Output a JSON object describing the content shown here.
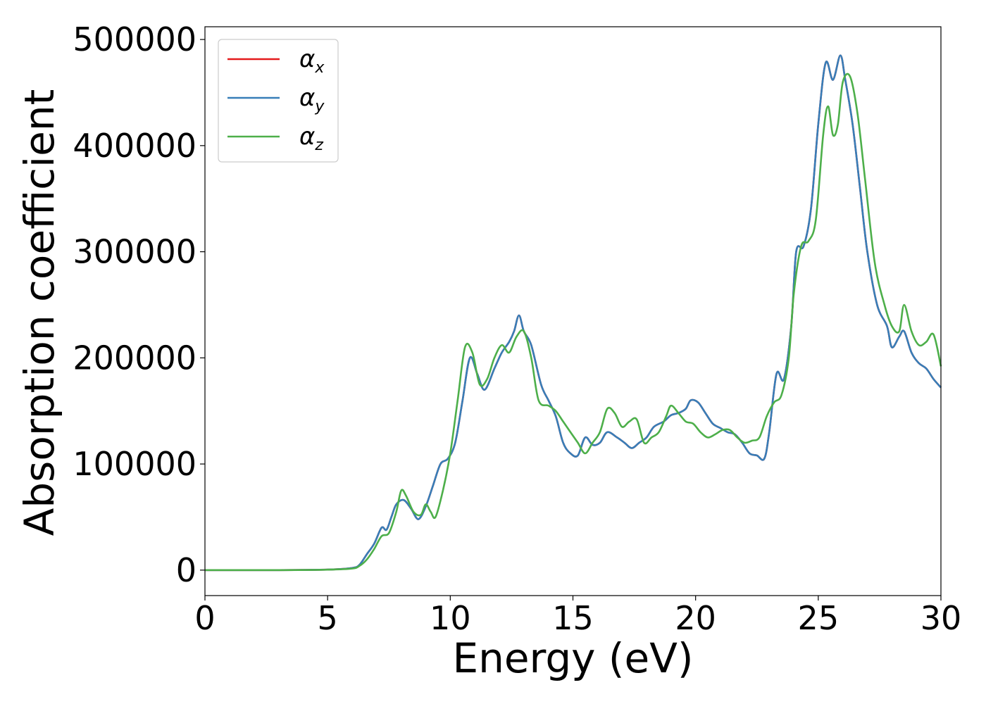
{
  "chart_data": {
    "type": "line",
    "title": "",
    "xlabel": "Energy (eV)",
    "ylabel": "Absorption coefficient",
    "xlim": [
      0,
      30
    ],
    "ylim": [
      -24000,
      512000
    ],
    "xticks": [
      0,
      5,
      10,
      15,
      20,
      25,
      30
    ],
    "xtick_labels": [
      "0",
      "5",
      "10",
      "15",
      "20",
      "25",
      "30"
    ],
    "yticks": [
      0,
      100000,
      200000,
      300000,
      400000,
      500000
    ],
    "ytick_labels": [
      "0",
      "100000",
      "200000",
      "300000",
      "400000",
      "500000"
    ],
    "grid": false,
    "legend_position": "top-left",
    "series": [
      {
        "name": "α",
        "subscript": "x",
        "color": "#e41a1c",
        "x": [
          0,
          3,
          5,
          6,
          6.3,
          6.6,
          6.9,
          7.2,
          7.4,
          7.6,
          7.8,
          8.1,
          8.4,
          8.7,
          9.0,
          9.3,
          9.6,
          9.9,
          10.2,
          10.5,
          10.8,
          11.1,
          11.4,
          11.8,
          12.1,
          12.4,
          12.6,
          12.8,
          13.0,
          13.3,
          13.7,
          14.0,
          14.3,
          14.6,
          14.9,
          15.2,
          15.5,
          15.8,
          16.1,
          16.4,
          16.8,
          17.1,
          17.4,
          17.7,
          18.0,
          18.3,
          18.7,
          19.0,
          19.3,
          19.6,
          19.8,
          20.1,
          20.4,
          20.7,
          21.0,
          21.3,
          21.6,
          21.9,
          22.2,
          22.5,
          22.8,
          23.0,
          23.3,
          23.6,
          23.9,
          24.1,
          24.4,
          24.7,
          25.0,
          25.3,
          25.6,
          25.9,
          26.1,
          26.4,
          26.7,
          27.0,
          27.4,
          27.8,
          28.0,
          28.3,
          28.5,
          28.8,
          29.1,
          29.4,
          29.7,
          30.0
        ],
        "values": [
          0,
          0,
          500,
          2000,
          5000,
          15000,
          25000,
          40000,
          38000,
          50000,
          62000,
          66000,
          58000,
          48000,
          60000,
          80000,
          100000,
          105000,
          120000,
          160000,
          200000,
          185000,
          170000,
          190000,
          205000,
          215000,
          225000,
          240000,
          225000,
          212000,
          175000,
          160000,
          145000,
          120000,
          110000,
          108000,
          125000,
          118000,
          120000,
          130000,
          125000,
          120000,
          115000,
          120000,
          125000,
          135000,
          140000,
          146000,
          148000,
          152000,
          160000,
          158000,
          148000,
          138000,
          134000,
          130000,
          128000,
          120000,
          110000,
          108000,
          105000,
          130000,
          185000,
          180000,
          230000,
          300000,
          305000,
          340000,
          420000,
          478000,
          462000,
          485000,
          462000,
          420000,
          360000,
          300000,
          250000,
          230000,
          210000,
          220000,
          225000,
          205000,
          195000,
          190000,
          180000,
          172000
        ]
      },
      {
        "name": "α",
        "subscript": "y",
        "color": "#377eb8",
        "x": [
          0,
          3,
          5,
          6,
          6.3,
          6.6,
          6.9,
          7.2,
          7.4,
          7.6,
          7.8,
          8.1,
          8.4,
          8.7,
          9.0,
          9.3,
          9.6,
          9.9,
          10.2,
          10.5,
          10.8,
          11.1,
          11.4,
          11.8,
          12.1,
          12.4,
          12.6,
          12.8,
          13.0,
          13.3,
          13.7,
          14.0,
          14.3,
          14.6,
          14.9,
          15.2,
          15.5,
          15.8,
          16.1,
          16.4,
          16.8,
          17.1,
          17.4,
          17.7,
          18.0,
          18.3,
          18.7,
          19.0,
          19.3,
          19.6,
          19.8,
          20.1,
          20.4,
          20.7,
          21.0,
          21.3,
          21.6,
          21.9,
          22.2,
          22.5,
          22.8,
          23.0,
          23.3,
          23.6,
          23.9,
          24.1,
          24.4,
          24.7,
          25.0,
          25.3,
          25.6,
          25.9,
          26.1,
          26.4,
          26.7,
          27.0,
          27.4,
          27.8,
          28.0,
          28.3,
          28.5,
          28.8,
          29.1,
          29.4,
          29.7,
          30.0
        ],
        "values": [
          0,
          0,
          500,
          2000,
          5000,
          15000,
          25000,
          40000,
          38000,
          50000,
          62000,
          66000,
          58000,
          48000,
          60000,
          80000,
          100000,
          105000,
          120000,
          160000,
          200000,
          185000,
          170000,
          190000,
          205000,
          215000,
          225000,
          240000,
          225000,
          212000,
          175000,
          160000,
          145000,
          120000,
          110000,
          108000,
          125000,
          118000,
          120000,
          130000,
          125000,
          120000,
          115000,
          120000,
          125000,
          135000,
          140000,
          146000,
          148000,
          152000,
          160000,
          158000,
          148000,
          138000,
          134000,
          130000,
          128000,
          120000,
          110000,
          108000,
          105000,
          130000,
          185000,
          180000,
          230000,
          300000,
          305000,
          340000,
          420000,
          478000,
          462000,
          485000,
          462000,
          420000,
          360000,
          300000,
          250000,
          230000,
          210000,
          220000,
          225000,
          205000,
          195000,
          190000,
          180000,
          172000
        ]
      },
      {
        "name": "α",
        "subscript": "z",
        "color": "#4daf4a",
        "x": [
          0,
          3,
          5,
          6,
          6.3,
          6.6,
          6.9,
          7.2,
          7.5,
          7.8,
          8.0,
          8.2,
          8.5,
          8.8,
          9.0,
          9.2,
          9.4,
          9.7,
          10.0,
          10.3,
          10.6,
          10.9,
          11.2,
          11.5,
          11.8,
          12.1,
          12.4,
          12.7,
          13.0,
          13.3,
          13.6,
          14.0,
          14.3,
          14.6,
          14.9,
          15.2,
          15.5,
          15.8,
          16.1,
          16.4,
          16.7,
          17.0,
          17.3,
          17.6,
          17.9,
          18.2,
          18.5,
          18.8,
          19.0,
          19.3,
          19.6,
          19.9,
          20.2,
          20.5,
          20.8,
          21.1,
          21.4,
          21.7,
          22.0,
          22.3,
          22.6,
          22.9,
          23.2,
          23.5,
          23.8,
          24.0,
          24.3,
          24.6,
          24.9,
          25.2,
          25.4,
          25.6,
          25.8,
          26.0,
          26.3,
          26.6,
          26.9,
          27.3,
          27.7,
          28.0,
          28.3,
          28.5,
          28.8,
          29.1,
          29.4,
          29.7,
          30.0
        ],
        "values": [
          0,
          0,
          400,
          1500,
          4000,
          10000,
          20000,
          32000,
          35000,
          55000,
          75000,
          70000,
          55000,
          52000,
          62000,
          55000,
          50000,
          75000,
          110000,
          160000,
          210000,
          205000,
          175000,
          180000,
          200000,
          212000,
          205000,
          220000,
          225000,
          200000,
          160000,
          155000,
          150000,
          140000,
          130000,
          120000,
          110000,
          120000,
          130000,
          152000,
          148000,
          135000,
          140000,
          142000,
          120000,
          125000,
          130000,
          145000,
          155000,
          148000,
          140000,
          138000,
          130000,
          125000,
          128000,
          132000,
          132000,
          125000,
          120000,
          122000,
          125000,
          145000,
          158000,
          165000,
          200000,
          260000,
          305000,
          310000,
          330000,
          410000,
          437000,
          410000,
          420000,
          460000,
          465000,
          430000,
          370000,
          290000,
          250000,
          230000,
          225000,
          250000,
          225000,
          212000,
          215000,
          222000,
          192000
        ]
      }
    ]
  }
}
